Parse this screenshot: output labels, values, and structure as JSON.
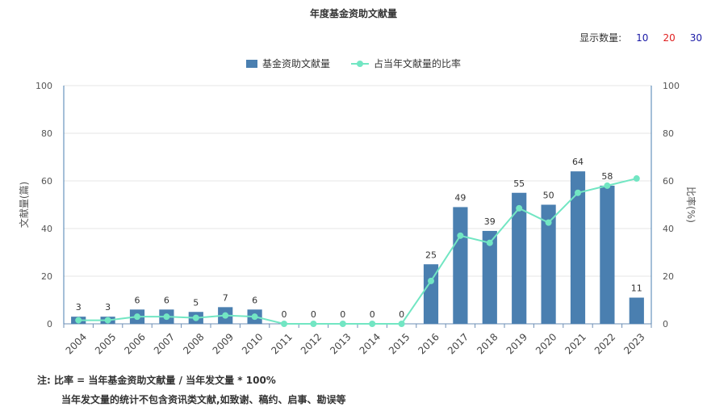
{
  "title": "年度基金资助文献量",
  "count_selector": {
    "label": "显示数量:",
    "options": [
      "10",
      "20",
      "30"
    ],
    "colors": [
      "#1a1aa6",
      "#e02020",
      "#1a1aa6"
    ]
  },
  "legend": {
    "bar": "基金资助文献量",
    "line": "占当年文献量的比率"
  },
  "notes": {
    "line1": "注:  比率 = 当年基金资助文献量 / 当年发文量 * 100%",
    "line2": "当年发文量的统计不包含资讯类文献,如致谢、稿约、启事、勘误等"
  },
  "chart_data": {
    "type": "bar",
    "categories": [
      "2004",
      "2005",
      "2006",
      "2007",
      "2008",
      "2009",
      "2010",
      "2011",
      "2012",
      "2013",
      "2014",
      "2015",
      "2016",
      "2017",
      "2018",
      "2019",
      "2020",
      "2021",
      "2022",
      "2023"
    ],
    "series": [
      {
        "name": "基金资助文献量",
        "type": "bar",
        "axis": "left",
        "values": [
          3,
          3,
          6,
          6,
          5,
          7,
          6,
          0,
          0,
          0,
          0,
          0,
          25,
          49,
          39,
          55,
          50,
          64,
          58,
          11
        ]
      },
      {
        "name": "占当年文献量的比率",
        "type": "line",
        "axis": "right",
        "values": [
          1.5,
          1.5,
          3,
          3,
          2.5,
          3.5,
          3,
          0,
          0,
          0,
          0,
          0,
          18,
          37,
          34,
          48.5,
          42.5,
          55,
          58,
          61
        ]
      }
    ],
    "ylabel": "文献量(篇)",
    "y2label": "比率(%)",
    "ylim": [
      0,
      100
    ],
    "y2lim": [
      0,
      100
    ],
    "yticks": [
      0,
      20,
      40,
      60,
      80,
      100
    ],
    "grid": true,
    "legend_position": "top-center",
    "colors": {
      "bar": "#4a7fb0",
      "line": "#72e6c3",
      "left_axis": "#4a7fb0",
      "right_axis": "#4a7fb0",
      "grid": "#e5e5e5"
    }
  }
}
